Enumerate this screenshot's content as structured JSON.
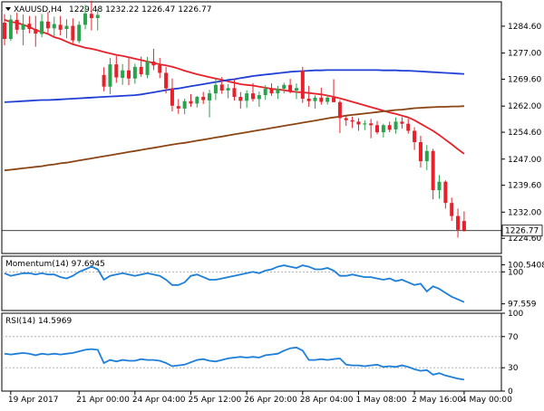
{
  "header": {
    "symbol_label": "XAUUSD,H4",
    "ohlc": "1229.48 1232.22 1226.47 1226.77"
  },
  "colors": {
    "bull": "#2ba24c",
    "bear": "#e8202a",
    "sma20": "#e8202a",
    "sma100": "#1f3fd6",
    "sma200": "#8b4513",
    "indicator": "#1e7fd9",
    "grid": "#b0b0b0"
  },
  "chart_data": [
    {
      "type": "candlestick",
      "name": "price",
      "ylim": [
        1220.3,
        1291.5
      ],
      "y_ticks": [
        1284.6,
        1277.0,
        1269.6,
        1262.0,
        1254.6,
        1247.0,
        1239.6,
        1232.0,
        1224.6
      ],
      "y_tick_labels": [
        "1284.60",
        "1277.00",
        "1269.60",
        "1262.00",
        "1254.60",
        "1247.00",
        "1239.60",
        "1232.00",
        "1224.60"
      ],
      "current_price": 1226.77,
      "current_price_label": "1226.77",
      "candles": [
        [
          1285.6,
          1288.0,
          1279.2,
          1281.0
        ],
        [
          1281.0,
          1287.8,
          1280.4,
          1286.5
        ],
        [
          1286.4,
          1288.4,
          1282.4,
          1283.6
        ],
        [
          1283.6,
          1287.9,
          1279.2,
          1285.2
        ],
        [
          1285.3,
          1287.5,
          1282.6,
          1283.8
        ],
        [
          1283.8,
          1287.5,
          1278.8,
          1282.5
        ],
        [
          1282.4,
          1288.1,
          1281.5,
          1286.0
        ],
        [
          1285.9,
          1288.6,
          1282.6,
          1284.0
        ],
        [
          1284.0,
          1287.3,
          1281.5,
          1285.2
        ],
        [
          1285.0,
          1287.5,
          1282.0,
          1283.6
        ],
        [
          1283.8,
          1286.6,
          1281.2,
          1284.7
        ],
        [
          1284.7,
          1286.8,
          1279.8,
          1280.6
        ],
        [
          1280.4,
          1286.0,
          1279.8,
          1285.0
        ],
        [
          1285.0,
          1290.6,
          1283.7,
          1288.2
        ],
        [
          1288.1,
          1291.8,
          1283.4,
          1286.9
        ],
        [
          1286.9,
          1289.6,
          1283.4,
          1287.8
        ],
        [
          1270.8,
          1273.0,
          1266.2,
          1267.5
        ],
        [
          1267.5,
          1275.6,
          1265.4,
          1273.8
        ],
        [
          1273.8,
          1276.2,
          1268.6,
          1270.1
        ],
        [
          1270.0,
          1273.9,
          1268.0,
          1272.1
        ],
        [
          1272.1,
          1275.6,
          1267.9,
          1269.8
        ],
        [
          1269.8,
          1274.0,
          1268.3,
          1273.1
        ],
        [
          1273.1,
          1276.0,
          1270.3,
          1271.0
        ],
        [
          1270.8,
          1275.9,
          1269.9,
          1274.6
        ],
        [
          1274.6,
          1278.2,
          1272.2,
          1273.5
        ],
        [
          1273.6,
          1275.6,
          1269.9,
          1271.4
        ],
        [
          1271.4,
          1273.1,
          1265.6,
          1267.0
        ],
        [
          1267.0,
          1269.8,
          1260.5,
          1262.1
        ],
        [
          1262.0,
          1264.0,
          1259.8,
          1261.3
        ],
        [
          1261.3,
          1264.1,
          1259.7,
          1263.4
        ],
        [
          1263.4,
          1265.4,
          1261.8,
          1262.7
        ],
        [
          1262.7,
          1264.9,
          1261.6,
          1264.6
        ],
        [
          1264.6,
          1266.0,
          1262.6,
          1263.7
        ],
        [
          1263.6,
          1266.6,
          1258.8,
          1265.6
        ],
        [
          1265.6,
          1269.7,
          1263.7,
          1268.0
        ],
        [
          1268.1,
          1270.2,
          1265.5,
          1266.4
        ],
        [
          1266.4,
          1268.2,
          1264.2,
          1267.1
        ],
        [
          1267.1,
          1269.6,
          1263.6,
          1264.6
        ],
        [
          1264.6,
          1266.0,
          1261.3,
          1263.5
        ],
        [
          1263.5,
          1266.5,
          1261.5,
          1265.6
        ],
        [
          1265.6,
          1268.5,
          1263.3,
          1264.0
        ],
        [
          1264.0,
          1266.1,
          1261.8,
          1265.1
        ],
        [
          1265.1,
          1267.9,
          1263.8,
          1266.9
        ],
        [
          1266.9,
          1268.4,
          1264.9,
          1265.6
        ],
        [
          1265.6,
          1267.7,
          1264.0,
          1266.9
        ],
        [
          1266.9,
          1268.6,
          1265.6,
          1268.0
        ],
        [
          1268.0,
          1269.7,
          1265.6,
          1266.4
        ],
        [
          1266.4,
          1268.4,
          1264.0,
          1267.1
        ],
        [
          1272.0,
          1273.1,
          1262.9,
          1264.1
        ],
        [
          1264.1,
          1267.7,
          1261.8,
          1263.4
        ],
        [
          1263.4,
          1265.1,
          1261.3,
          1264.4
        ],
        [
          1264.4,
          1267.2,
          1262.4,
          1263.2
        ],
        [
          1263.2,
          1265.2,
          1262.4,
          1264.4
        ],
        [
          1264.4,
          1269.6,
          1263.5,
          1263.1
        ],
        [
          1263.1,
          1263.7,
          1254.4,
          1258.6
        ],
        [
          1258.6,
          1259.1,
          1256.4,
          1258.0
        ],
        [
          1258.0,
          1259.0,
          1255.8,
          1257.6
        ],
        [
          1257.6,
          1258.6,
          1255.0,
          1256.8
        ],
        [
          1256.8,
          1258.0,
          1255.2,
          1257.1
        ],
        [
          1257.1,
          1258.4,
          1252.9,
          1256.6
        ],
        [
          1256.6,
          1257.8,
          1254.0,
          1254.6
        ],
        [
          1254.6,
          1257.0,
          1253.1,
          1256.6
        ],
        [
          1256.6,
          1257.6,
          1254.6,
          1255.3
        ],
        [
          1255.4,
          1258.8,
          1254.2,
          1257.6
        ],
        [
          1257.6,
          1258.9,
          1255.6,
          1257.0
        ],
        [
          1257.0,
          1258.4,
          1254.2,
          1255.0
        ],
        [
          1255.0,
          1256.0,
          1249.6,
          1251.8
        ],
        [
          1251.8,
          1253.6,
          1244.6,
          1246.4
        ],
        [
          1246.4,
          1251.0,
          1243.9,
          1249.3
        ],
        [
          1249.3,
          1249.9,
          1235.6,
          1238.2
        ],
        [
          1238.2,
          1242.5,
          1235.8,
          1240.6
        ],
        [
          1240.6,
          1241.0,
          1233.0,
          1234.6
        ],
        [
          1234.6,
          1236.1,
          1229.5,
          1230.9
        ],
        [
          1230.9,
          1233.0,
          1224.8,
          1227.0
        ],
        [
          1229.48,
          1232.22,
          1226.47,
          1226.77
        ]
      ],
      "overlays": [
        {
          "name": "sma20",
          "values": [
            1286.4,
            1285.8,
            1285.6,
            1285.0,
            1284.4,
            1283.5,
            1283.0,
            1282.4,
            1281.5,
            1281.0,
            1280.2,
            1279.5,
            1279.0,
            1278.5,
            1278.2,
            1277.8,
            1277.3,
            1276.9,
            1276.5,
            1276.2,
            1275.8,
            1275.4,
            1275.0,
            1274.6,
            1274.2,
            1273.8,
            1273.5,
            1273.1,
            1272.6,
            1272.0,
            1271.5,
            1271.0,
            1270.6,
            1270.2,
            1269.8,
            1269.4,
            1269.0,
            1268.6,
            1268.2,
            1268.0,
            1267.8,
            1267.5,
            1267.2,
            1266.9,
            1266.7,
            1266.5,
            1266.2,
            1266.0,
            1265.9,
            1265.7,
            1265.5,
            1265.3,
            1265.0,
            1264.6,
            1264.2,
            1263.7,
            1263.2,
            1262.7,
            1262.2,
            1261.7,
            1261.2,
            1260.7,
            1260.2,
            1259.8,
            1259.3,
            1258.8,
            1258.0,
            1257.0,
            1256.0,
            1255.0,
            1253.8,
            1252.5,
            1251.2,
            1249.8,
            1248.5
          ]
        },
        {
          "name": "sma100",
          "values": [
            1263.1,
            1263.2,
            1263.3,
            1263.4,
            1263.5,
            1263.6,
            1263.7,
            1263.7,
            1263.8,
            1263.9,
            1264.0,
            1264.1,
            1264.2,
            1264.3,
            1264.4,
            1264.5,
            1264.6,
            1264.7,
            1264.8,
            1264.9,
            1265.0,
            1265.1,
            1265.3,
            1265.6,
            1265.9,
            1266.2,
            1266.5,
            1266.8,
            1267.0,
            1267.3,
            1267.6,
            1267.9,
            1268.2,
            1268.5,
            1268.8,
            1269.1,
            1269.4,
            1269.6,
            1269.9,
            1270.2,
            1270.5,
            1270.7,
            1270.9,
            1271.1,
            1271.3,
            1271.5,
            1271.7,
            1271.8,
            1271.9,
            1272.0,
            1272.1,
            1272.1,
            1272.2,
            1272.2,
            1272.2,
            1272.2,
            1272.2,
            1272.2,
            1272.2,
            1272.2,
            1272.2,
            1272.1,
            1272.1,
            1272.1,
            1272.0,
            1272.0,
            1271.9,
            1271.8,
            1271.7,
            1271.6,
            1271.5,
            1271.4,
            1271.3,
            1271.2,
            1271.1
          ]
        },
        {
          "name": "sma200",
          "values": [
            1243.8,
            1244.0,
            1244.2,
            1244.4,
            1244.6,
            1244.8,
            1245.0,
            1245.3,
            1245.5,
            1245.8,
            1246.0,
            1246.3,
            1246.6,
            1246.9,
            1247.2,
            1247.5,
            1247.8,
            1248.1,
            1248.4,
            1248.7,
            1249.0,
            1249.3,
            1249.6,
            1249.9,
            1250.2,
            1250.5,
            1250.8,
            1251.1,
            1251.4,
            1251.6,
            1251.9,
            1252.2,
            1252.5,
            1252.8,
            1253.1,
            1253.4,
            1253.7,
            1254.0,
            1254.3,
            1254.6,
            1254.9,
            1255.2,
            1255.5,
            1255.8,
            1256.1,
            1256.4,
            1256.7,
            1257.0,
            1257.3,
            1257.6,
            1257.9,
            1258.2,
            1258.5,
            1258.8,
            1259.0,
            1259.3,
            1259.5,
            1259.7,
            1259.9,
            1260.1,
            1260.3,
            1260.5,
            1260.7,
            1260.9,
            1261.0,
            1261.2,
            1261.4,
            1261.5,
            1261.6,
            1261.7,
            1261.8,
            1261.8,
            1261.9,
            1261.9,
            1262.0
          ]
        }
      ]
    },
    {
      "type": "line",
      "name": "momentum",
      "label": "Momentum(14) 97.6945",
      "ylim": [
        97.05,
        101.2
      ],
      "reference_level": 100,
      "y_ticks": [
        100.5408,
        100,
        97.559
      ],
      "y_tick_labels": [
        "100.5408",
        "100",
        "97.559"
      ],
      "values": [
        99.9,
        99.7,
        99.8,
        99.9,
        99.9,
        99.8,
        99.9,
        99.8,
        99.8,
        99.6,
        99.5,
        99.7,
        100.0,
        100.2,
        100.4,
        100.2,
        99.4,
        99.7,
        99.8,
        99.9,
        99.8,
        99.7,
        99.8,
        99.9,
        99.8,
        99.7,
        99.4,
        99.0,
        99.0,
        99.2,
        99.7,
        99.8,
        99.6,
        99.4,
        99.4,
        99.5,
        99.6,
        99.7,
        99.8,
        99.9,
        100.0,
        99.9,
        100.1,
        100.2,
        100.4,
        100.5,
        100.4,
        100.3,
        100.5,
        100.4,
        100.2,
        100.2,
        100.3,
        100.1,
        99.7,
        99.7,
        99.8,
        99.7,
        99.6,
        99.6,
        99.5,
        99.4,
        99.5,
        99.3,
        99.4,
        99.2,
        99.0,
        99.1,
        98.5,
        98.9,
        98.7,
        98.4,
        98.1,
        97.9,
        97.69
      ]
    },
    {
      "type": "line",
      "name": "rsi",
      "label": "RSI(14) 14.5969",
      "ylim": [
        0,
        100
      ],
      "levels": [
        70,
        30
      ],
      "y_ticks": [
        100,
        70,
        30,
        0
      ],
      "y_tick_labels": [
        "100",
        "70",
        "30",
        "0"
      ],
      "values": [
        48,
        47,
        48,
        49,
        48,
        46,
        48,
        47,
        48,
        47,
        48,
        49,
        51,
        53,
        54,
        53,
        36,
        40,
        38,
        40,
        39,
        39,
        41,
        40,
        40,
        39,
        36,
        32,
        33,
        34,
        37,
        40,
        41,
        39,
        38,
        40,
        42,
        43,
        44,
        43,
        44,
        43,
        46,
        47,
        48,
        52,
        55,
        56,
        52,
        40,
        40,
        41,
        40,
        41,
        42,
        34,
        33,
        33,
        32,
        33,
        34,
        31,
        32,
        31,
        33,
        31,
        28,
        26,
        27,
        21,
        23,
        20,
        18,
        16,
        14.6
      ]
    }
  ],
  "x_axis": {
    "labels": [
      "19 Apr 2017",
      "21 Apr 00:00",
      "24 Apr 04:00",
      "25 Apr 12:00",
      "26 Apr 20:00",
      "28 Apr 04:00",
      "1 May 08:00",
      "2 May 16:00",
      "4 May 00:00"
    ],
    "label_index": [
      1,
      12,
      21,
      30,
      39,
      48,
      57,
      66,
      74
    ]
  }
}
